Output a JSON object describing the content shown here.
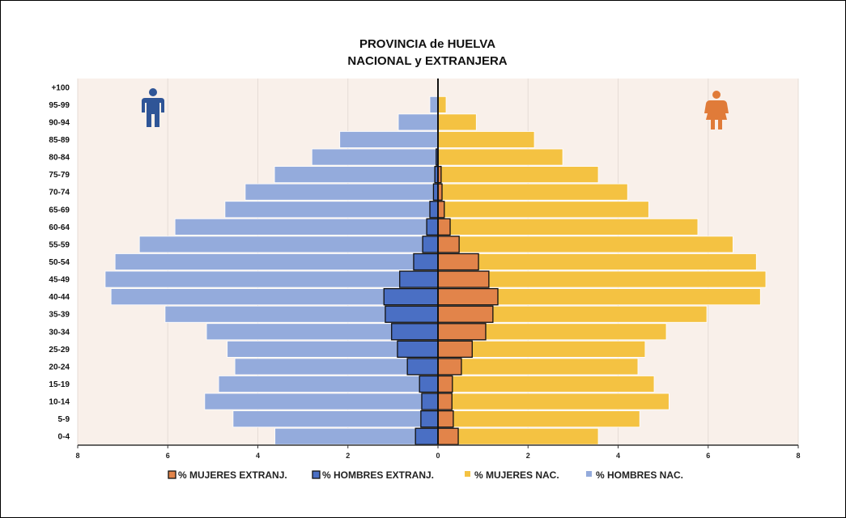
{
  "chart_data": {
    "type": "bar",
    "orientation": "horizontal-pyramid",
    "title": [
      "PROVINCIA  de HUELVA",
      "NACIONAL y EXTRANJERA"
    ],
    "categories": [
      "+100",
      "95-99",
      "90-94",
      "85-89",
      "80-84",
      "75-79",
      "70-74",
      "65-69",
      "60-64",
      "55-59",
      "50-54",
      "45-49",
      "40-44",
      "35-39",
      "30-34",
      "25-29",
      "20-24",
      "15-19",
      "10-14",
      "5-9",
      "0-4"
    ],
    "xlim": [
      -8,
      8
    ],
    "xticks": [
      8,
      6,
      4,
      2,
      0,
      2,
      4,
      6,
      8
    ],
    "xtick_values": [
      -8,
      -6,
      -4,
      -2,
      0,
      2,
      4,
      6,
      8
    ],
    "grid": true,
    "legend_position": "bottom",
    "series": [
      {
        "name": "% MUJERES EXTRANJ.",
        "side": "right",
        "color": "#e2844a",
        "values": [
          0,
          0,
          0,
          0,
          0,
          0.07,
          0.09,
          0.14,
          0.27,
          0.47,
          0.9,
          1.13,
          1.33,
          1.22,
          1.06,
          0.76,
          0.52,
          0.32,
          0.31,
          0.34,
          0.45
        ]
      },
      {
        "name": "% HOMBRES EXTRANJ.",
        "side": "left",
        "color": "#4a6fc4",
        "values": [
          0,
          0,
          0,
          0,
          0.04,
          0.07,
          0.1,
          0.18,
          0.25,
          0.34,
          0.54,
          0.85,
          1.2,
          1.17,
          1.03,
          0.9,
          0.68,
          0.41,
          0.36,
          0.38,
          0.5
        ]
      },
      {
        "name": "% MUJERES NAC.",
        "side": "right",
        "color": "#f4c242",
        "values": [
          0,
          0.18,
          0.85,
          2.14,
          2.77,
          3.56,
          4.21,
          4.68,
          5.77,
          6.55,
          7.07,
          7.28,
          7.16,
          5.97,
          5.07,
          4.6,
          4.44,
          4.8,
          5.13,
          4.48,
          3.56
        ]
      },
      {
        "name": "% HOMBRES NAC.",
        "side": "left",
        "color": "#94abdc",
        "values": [
          0,
          0.18,
          0.88,
          2.18,
          2.8,
          3.63,
          4.28,
          4.73,
          5.84,
          6.63,
          7.17,
          7.39,
          7.26,
          6.06,
          5.14,
          4.68,
          4.51,
          4.87,
          5.18,
          4.55,
          3.62
        ]
      }
    ],
    "colors": {
      "plot_bg": "#f9f0ea",
      "male_icon": "#2f5597",
      "female_icon": "#e07b39"
    }
  }
}
